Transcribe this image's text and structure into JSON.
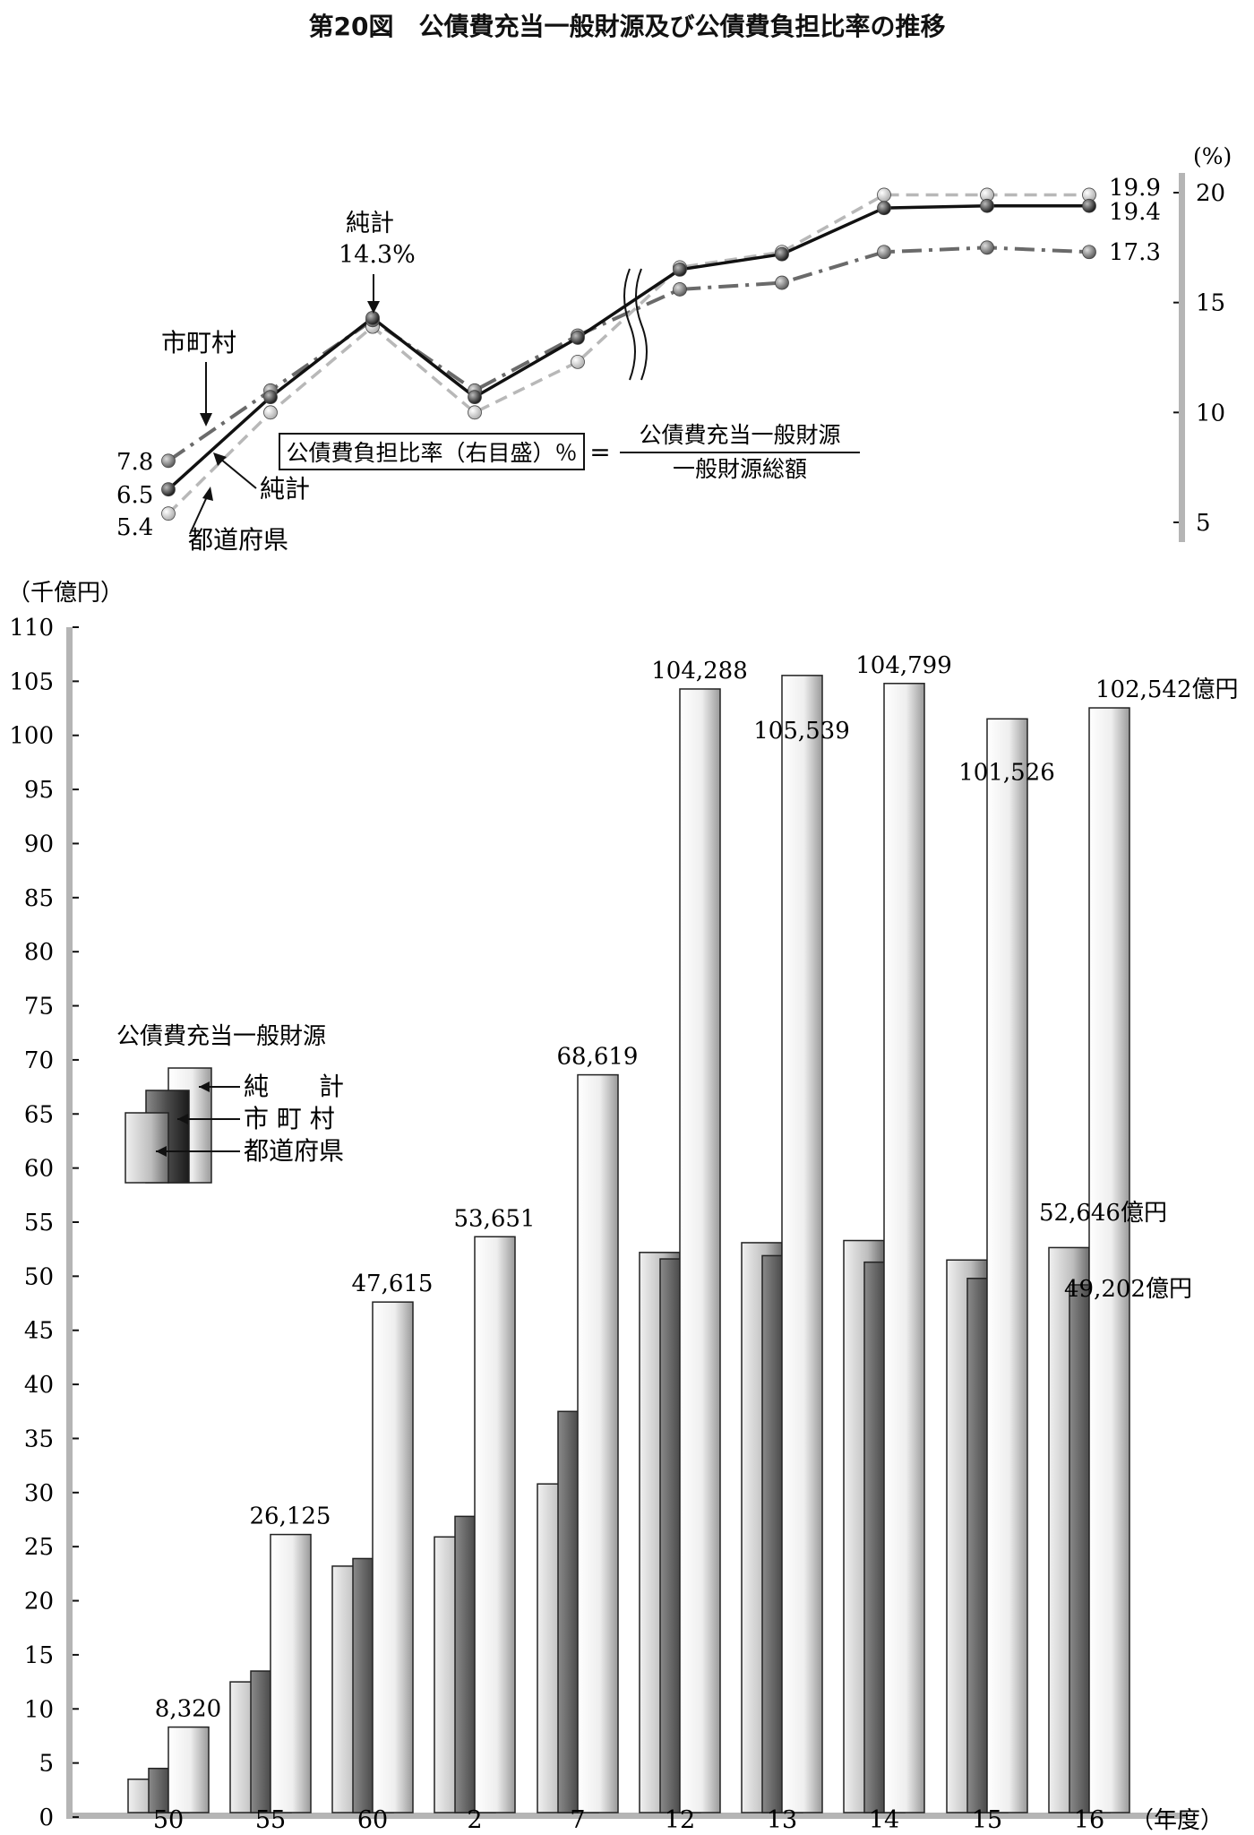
{
  "title": "第20図　公債費充当一般財源及び公債費負担比率の推移",
  "chart_data": [
    {
      "type": "line",
      "name": "ratio",
      "y_unit_label": "(%)",
      "ylim": [
        5,
        20
      ],
      "yticks": [
        5,
        10,
        15,
        20
      ],
      "axis_side": "right",
      "x": [
        "50",
        "55",
        "60",
        "2",
        "7",
        "12",
        "13",
        "14",
        "15",
        "16"
      ],
      "axis_break_after": "7",
      "series": [
        {
          "name": "純計",
          "values": [
            6.5,
            10.7,
            14.3,
            10.7,
            13.4,
            16.5,
            17.2,
            19.3,
            19.4,
            19.4
          ],
          "color": "#111111",
          "style": "solid"
        },
        {
          "name": "市町村",
          "values": [
            7.8,
            11.0,
            14.2,
            11.0,
            13.5,
            15.6,
            15.9,
            17.3,
            17.5,
            17.3
          ],
          "color": "#6a6a6a",
          "style": "dashdot"
        },
        {
          "name": "都道府県",
          "values": [
            5.4,
            10.0,
            13.9,
            10.0,
            12.3,
            16.6,
            17.3,
            19.9,
            19.9,
            19.9
          ],
          "color": "#b8b8b8",
          "style": "dashed"
        }
      ],
      "start_labels": [
        "7.8",
        "6.5",
        "5.4"
      ],
      "end_labels": [
        "19.9",
        "19.4",
        "17.3"
      ],
      "annotations": {
        "peak_name": "純計",
        "peak_value": "14.3%",
        "shi": "市町村",
        "junkei": "純計",
        "todofuken": "都道府県"
      },
      "formula": {
        "lhs": "公債費負担比率（右目盛）％",
        "eq": "=",
        "numerator": "公債費充当一般財源",
        "denominator": "一般財源総額"
      }
    },
    {
      "type": "bar",
      "name": "amount",
      "y_unit_label": "（千億円）",
      "ylim": [
        0,
        110
      ],
      "ytick_step": 5,
      "x_unit_label": "（年度）",
      "categories": [
        "50",
        "55",
        "60",
        "2",
        "7",
        "12",
        "13",
        "14",
        "15",
        "16"
      ],
      "series": [
        {
          "name": "都道府県",
          "values": [
            3.5,
            12.5,
            23.2,
            25.9,
            30.8,
            52.2,
            53.1,
            53.3,
            51.5,
            52.646
          ]
        },
        {
          "name": "市町村",
          "values": [
            4.5,
            13.5,
            23.9,
            27.8,
            37.5,
            51.6,
            51.9,
            51.3,
            49.8,
            49.202
          ]
        },
        {
          "name": "純計",
          "values": [
            8.32,
            26.125,
            47.615,
            53.651,
            68.619,
            104.288,
            105.539,
            104.799,
            101.526,
            102.542
          ]
        }
      ],
      "total_labels": [
        "8,320",
        "26,125",
        "47,615",
        "53,651",
        "68,619",
        "104,288",
        "105,539",
        "104,799",
        "101,526",
        "102,542億円"
      ],
      "extra_labels": {
        "todofuken_16": "52,646億円",
        "shi_16": "49,202億円"
      },
      "legend": {
        "title": "公債費充当一般財源",
        "junkei": "純　　計",
        "shi": "市 町 村",
        "todofuken": "都道府県"
      }
    }
  ]
}
